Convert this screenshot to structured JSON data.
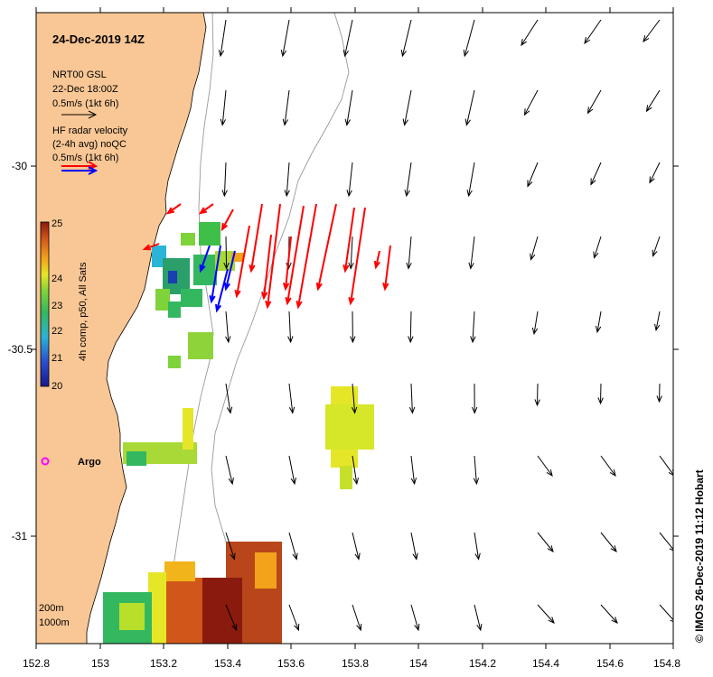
{
  "title": "24-Dec-2019 14Z",
  "model_legend": {
    "name": "NRT00 GSL",
    "date": "22-Dec 18:00Z",
    "scale": "0.5m/s (1kt 6h)"
  },
  "radar_legend": {
    "line1": "HF radar velocity",
    "line2": "(2-4h avg) noQC",
    "scale": "0.5m/s (1kt 6h)"
  },
  "colorbar": {
    "label": "4h comp, p50, All Sats",
    "ticks": [
      "25",
      "24",
      "23",
      "22",
      "21",
      "20"
    ]
  },
  "x_ticks": [
    "152.8",
    "153",
    "153.2",
    "153.4",
    "153.6",
    "153.8",
    "154",
    "154.2",
    "154.4",
    "154.6",
    "154.8"
  ],
  "y_ticks": [
    "-30",
    "-30.5",
    "-31"
  ],
  "argo_label": "Argo",
  "contours": [
    "200m",
    "1000m"
  ],
  "footer": "© IMOS 26-Dec-2019 11:12 Hobart",
  "colors": {
    "land": "#f9c795",
    "radar_red": "#ff0000",
    "radar_blue": "#0000ff",
    "argo": "#ff00ff"
  }
}
